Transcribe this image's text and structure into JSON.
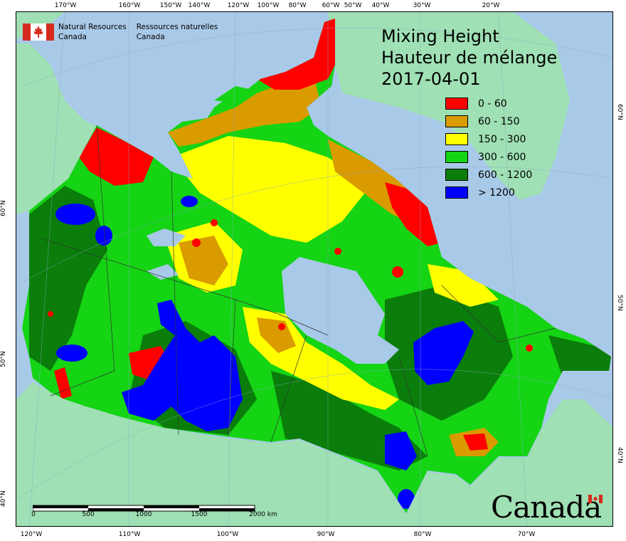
{
  "title": {
    "line1": "Mixing Height",
    "line2": "Hauteur de mélange",
    "date": "2017-04-01"
  },
  "legend": [
    {
      "label": "0 - 60",
      "color": "#ff0000"
    },
    {
      "label": "60 - 150",
      "color": "#d99b00"
    },
    {
      "label": "150 - 300",
      "color": "#ffff00"
    },
    {
      "label": "300 - 600",
      "color": "#14d414"
    },
    {
      "label": "600 - 1200",
      "color": "#0a7d0a"
    },
    {
      "label": "> 1200",
      "color": "#0000ff"
    }
  ],
  "agency": {
    "en_line1": "Natural Resources",
    "en_line2": "Canada",
    "fr_line1": "Ressources naturelles",
    "fr_line2": "Canada"
  },
  "wordmark": "Canada",
  "scale_bar": {
    "labels": [
      "0",
      "500",
      "1000",
      "1500",
      "2000 km"
    ]
  },
  "graticule": {
    "top": [
      "170°W",
      "160°W",
      "150°W",
      "140°W",
      "120°W",
      "100°W",
      "80°W",
      "60°W",
      "50°W",
      "40°W",
      "30°W",
      "20°W"
    ],
    "bottom": [
      "120°W",
      "110°W",
      "100°W",
      "90°W",
      "80°W",
      "70°W"
    ],
    "left": [
      "60°N",
      "50°N",
      "40°N"
    ],
    "right": [
      "60°N",
      "50°N",
      "40°N"
    ]
  },
  "colors": {
    "water": "#a9c9e8",
    "foreign_land": "#9fe0b4",
    "province_border": "#333333"
  }
}
